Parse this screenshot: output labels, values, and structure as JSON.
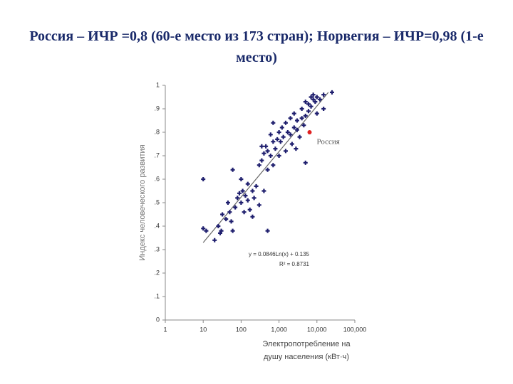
{
  "chart_data": {
    "type": "scatter",
    "title": "Россия – ИЧР =0,8 (60-е место из 173 стран); Норвегия – ИЧР=0,98 (1-е место)",
    "ylabel": "Индекс человеческого развития",
    "xlabel": [
      "Электропотребление на",
      "душу населения (кВт·ч)"
    ],
    "xscale": "log",
    "xlim": [
      1,
      100000
    ],
    "ylim": [
      0,
      1
    ],
    "xticks": [
      1,
      10,
      100,
      {
        "value": 1000,
        "label": "1,000"
      },
      {
        "value": 10000,
        "label": "10,000"
      },
      {
        "value": 100000,
        "label": "100,000"
      }
    ],
    "yticks": [
      0,
      {
        "value": 0.1,
        "label": ".1"
      },
      {
        "value": 0.2,
        "label": ".2"
      },
      {
        "value": 0.3,
        "label": ".3"
      },
      {
        "value": 0.4,
        "label": ".4"
      },
      {
        "value": 0.5,
        "label": ".5"
      },
      {
        "value": 0.6,
        "label": ".6"
      },
      {
        "value": 0.7,
        "label": ".7"
      },
      {
        "value": 0.8,
        "label": ".8"
      },
      {
        "value": 0.9,
        "label": ".9"
      },
      1
    ],
    "color": "#1f1f6e",
    "x": [
      10,
      10,
      12,
      20,
      25,
      28,
      30,
      32,
      40,
      45,
      50,
      55,
      60,
      60,
      70,
      80,
      90,
      100,
      100,
      110,
      120,
      130,
      150,
      150,
      170,
      200,
      200,
      220,
      250,
      300,
      300,
      350,
      350,
      400,
      400,
      450,
      500,
      500,
      500,
      600,
      600,
      700,
      700,
      800,
      900,
      1000,
      1000,
      1100,
      1200,
      1300,
      1500,
      1500,
      1700,
      2000,
      2000,
      2200,
      2500,
      2500,
      3000,
      3000,
      3500,
      4000,
      4000,
      4500,
      5000,
      5000,
      6000,
      6000,
      7000,
      7000,
      8000,
      8000,
      9000,
      10000,
      10000,
      12000,
      15000,
      15000,
      25000,
      5000,
      2800,
      700
    ],
    "y": [
      0.6,
      0.39,
      0.38,
      0.34,
      0.4,
      0.37,
      0.38,
      0.45,
      0.43,
      0.5,
      0.46,
      0.42,
      0.64,
      0.38,
      0.48,
      0.52,
      0.54,
      0.6,
      0.5,
      0.55,
      0.46,
      0.53,
      0.51,
      0.58,
      0.47,
      0.44,
      0.55,
      0.52,
      0.57,
      0.66,
      0.49,
      0.68,
      0.74,
      0.71,
      0.55,
      0.74,
      0.72,
      0.64,
      0.38,
      0.7,
      0.79,
      0.76,
      0.66,
      0.73,
      0.77,
      0.8,
      0.7,
      0.76,
      0.82,
      0.78,
      0.72,
      0.84,
      0.8,
      0.79,
      0.86,
      0.75,
      0.82,
      0.88,
      0.81,
      0.85,
      0.78,
      0.86,
      0.9,
      0.83,
      0.87,
      0.93,
      0.92,
      0.89,
      0.95,
      0.91,
      0.94,
      0.96,
      0.93,
      0.95,
      0.88,
      0.94,
      0.9,
      0.96,
      0.97,
      0.67,
      0.73,
      0.84
    ],
    "highlight": {
      "label": "Россия",
      "x": 6400,
      "y": 0.8,
      "color": "#e02020"
    },
    "trendline": {
      "x": [
        10,
        20000
      ],
      "y": [
        0.33,
        0.97
      ],
      "color": "#666666"
    },
    "equation": "y = 0.0846Ln(x) + 0.135",
    "r2": "R² = 0.8731"
  }
}
